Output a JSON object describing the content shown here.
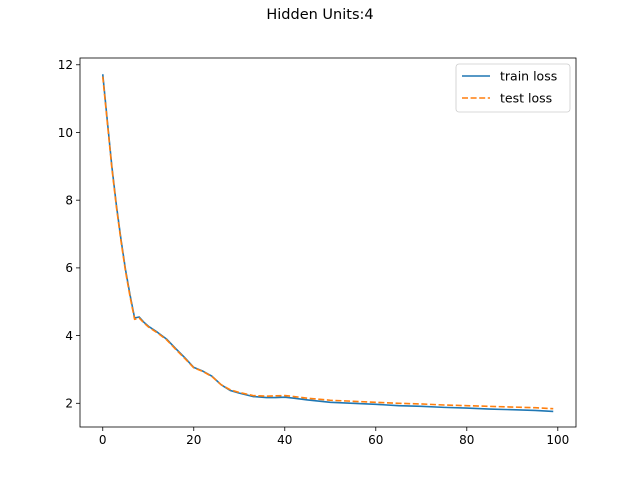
{
  "chart_data": {
    "type": "line",
    "title": "Hidden Units:4",
    "xlabel": "",
    "ylabel": "",
    "xlim": [
      -5,
      104
    ],
    "ylim": [
      1.3,
      12.2
    ],
    "xticks": [
      0,
      20,
      40,
      60,
      80,
      100
    ],
    "yticks": [
      2,
      4,
      6,
      8,
      10,
      12
    ],
    "grid": false,
    "legend": "top-right",
    "series": [
      {
        "name": "train loss",
        "color": "#1f77b4",
        "style": "solid",
        "x": [
          0,
          1,
          2,
          3,
          4,
          5,
          6,
          7,
          8,
          9,
          10,
          12,
          14,
          16,
          18,
          20,
          22,
          24,
          26,
          28,
          30,
          33,
          36,
          38,
          40,
          42,
          45,
          50,
          55,
          60,
          65,
          70,
          75,
          80,
          85,
          90,
          95,
          99
        ],
        "y": [
          11.72,
          10.35,
          9.0,
          7.85,
          6.85,
          5.95,
          5.2,
          4.52,
          4.55,
          4.4,
          4.28,
          4.1,
          3.9,
          3.62,
          3.35,
          3.06,
          2.95,
          2.8,
          2.55,
          2.38,
          2.3,
          2.2,
          2.17,
          2.17,
          2.18,
          2.15,
          2.1,
          2.03,
          2.0,
          1.97,
          1.93,
          1.91,
          1.88,
          1.86,
          1.83,
          1.81,
          1.79,
          1.76
        ]
      },
      {
        "name": "test loss",
        "color": "#ff7f0e",
        "style": "dashed",
        "x": [
          0,
          1,
          2,
          3,
          4,
          5,
          6,
          7,
          8,
          9,
          10,
          12,
          14,
          16,
          18,
          20,
          22,
          24,
          26,
          28,
          30,
          33,
          36,
          38,
          40,
          42,
          45,
          50,
          55,
          60,
          65,
          70,
          75,
          80,
          85,
          90,
          95,
          99
        ],
        "y": [
          11.65,
          10.3,
          8.95,
          7.8,
          6.8,
          5.9,
          5.15,
          4.48,
          4.52,
          4.38,
          4.26,
          4.08,
          3.88,
          3.6,
          3.33,
          3.05,
          2.94,
          2.79,
          2.55,
          2.4,
          2.32,
          2.23,
          2.21,
          2.22,
          2.23,
          2.2,
          2.15,
          2.09,
          2.06,
          2.03,
          2.0,
          1.98,
          1.95,
          1.93,
          1.91,
          1.89,
          1.87,
          1.84
        ]
      }
    ]
  }
}
